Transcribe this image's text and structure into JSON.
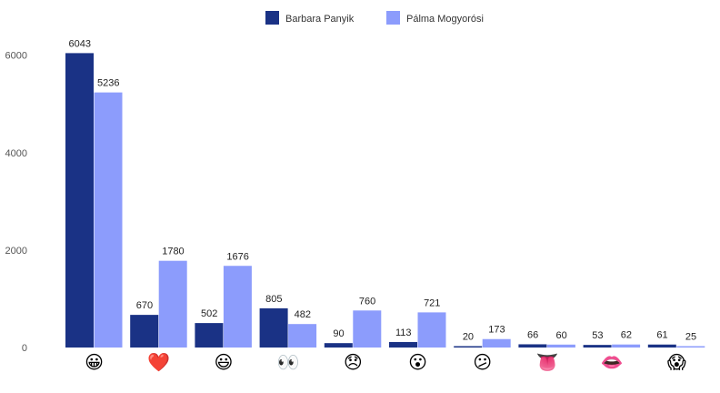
{
  "chart_data": {
    "type": "bar",
    "categories": [
      "😀",
      "❤️",
      "😃",
      "👀",
      "😞",
      "😮",
      "😕",
      "👅",
      "👄",
      "😱"
    ],
    "category_icons": [
      "grinning-face-icon",
      "red-heart-icon",
      "grinning-face-big-eyes-icon",
      "eyes-icon",
      "disappointed-face-icon",
      "open-mouth-face-icon",
      "confused-face-icon",
      "tongue-icon",
      "mouth-icon",
      "screaming-face-icon"
    ],
    "series": [
      {
        "name": "Barbara Panyik",
        "color": "#1a3285",
        "values": [
          6043,
          670,
          502,
          805,
          90,
          113,
          20,
          66,
          53,
          61
        ]
      },
      {
        "name": "Pálma Mogyorósi",
        "color": "#8c9cfc",
        "values": [
          5236,
          1780,
          1676,
          482,
          760,
          721,
          173,
          60,
          62,
          25
        ]
      }
    ],
    "yticks": [
      0,
      2000,
      4000,
      6000
    ],
    "ylim": [
      0,
      6500
    ],
    "xlabel": "",
    "ylabel": "",
    "title": "",
    "legend_position": "top-center",
    "grid": false
  }
}
